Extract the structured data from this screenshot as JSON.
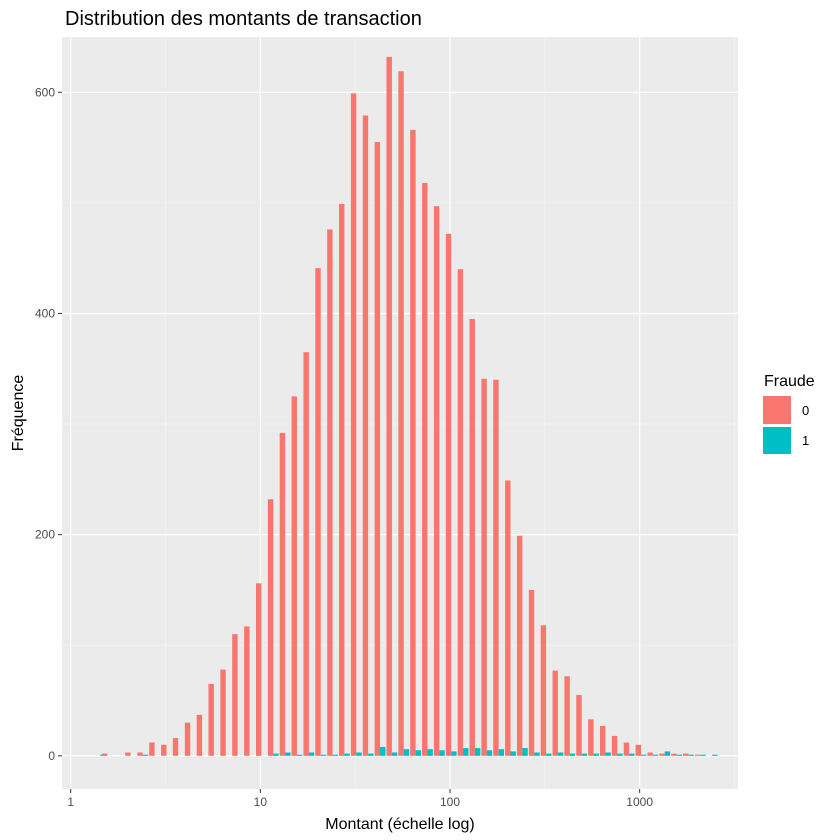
{
  "chart_data": {
    "type": "bar",
    "title": "Distribution des montants de transaction",
    "xlabel": "Montant (échelle log)",
    "ylabel": "Fréquence",
    "x_scale": "log10",
    "x_ticks": [
      1,
      10,
      100,
      1000
    ],
    "x_tick_labels": [
      "1",
      "10",
      "100",
      "1000"
    ],
    "xlim": [
      0.9,
      3300
    ],
    "y_ticks": [
      0,
      200,
      400,
      600
    ],
    "y_tick_labels": [
      "0",
      "200",
      "400",
      "600"
    ],
    "ylim": [
      -30,
      650
    ],
    "grid": true,
    "legend_position": "right",
    "legend_title": "Fraude",
    "bin_centers": [
      1.43,
      1.56,
      2.07,
      2.4,
      2.77,
      3.2,
      3.69,
      4.27,
      4.93,
      5.69,
      6.57,
      7.59,
      8.77,
      10.13,
      11.7,
      13.51,
      15.6,
      18.02,
      20.81,
      24.04,
      27.76,
      32.06,
      37.03,
      42.76,
      49.39,
      57.04,
      65.87,
      76.07,
      87.86,
      101.47,
      117.19,
      135.34,
      156.3,
      180.51,
      208.47,
      240.76,
      278.05,
      321.12,
      370.86,
      428.3,
      494.64,
      571.26,
      659.74,
      761.93,
      879.95,
      1016.25,
      1173.66,
      1355.45,
      1565.4,
      1807.87,
      2087.9,
      2411.3
    ],
    "series": [
      {
        "name": "0",
        "color": "#F8766D",
        "values": [
          0,
          2,
          3,
          3,
          12,
          10,
          16,
          30,
          37,
          65,
          78,
          110,
          117,
          156,
          232,
          292,
          325,
          365,
          441,
          476,
          499,
          599,
          579,
          555,
          632,
          619,
          566,
          518,
          497,
          472,
          440,
          395,
          341,
          340,
          249,
          199,
          150,
          118,
          77,
          72,
          55,
          33,
          27,
          18,
          12,
          10,
          3,
          2,
          2,
          2,
          1,
          0
        ]
      },
      {
        "name": "1",
        "color": "#00BFC4",
        "values": [
          1,
          0,
          0,
          1,
          0,
          0,
          0,
          0,
          0,
          0,
          0,
          0,
          0,
          0,
          2,
          3,
          1,
          3,
          1,
          1,
          2,
          3,
          2,
          8,
          3,
          6,
          5,
          6,
          5,
          4,
          7,
          7,
          5,
          6,
          4,
          7,
          3,
          2,
          3,
          2,
          2,
          2,
          3,
          2,
          2,
          1,
          1,
          4,
          1,
          1,
          1,
          1
        ]
      }
    ]
  }
}
